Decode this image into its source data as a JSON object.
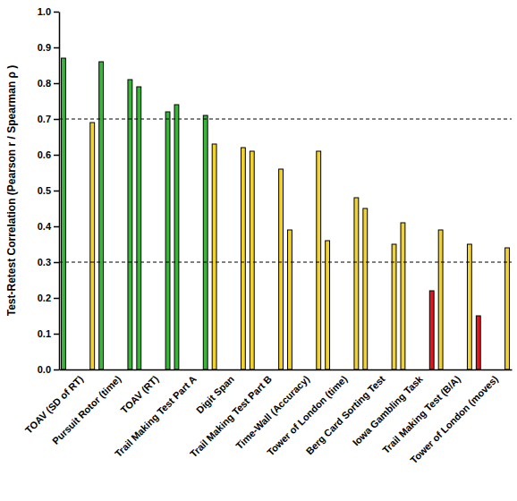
{
  "chart_data": {
    "type": "bar",
    "y_label": "Test-Retest Correlation (Pearson r / Spearman ρ )",
    "categories": [
      "TOAV (SD of RT)",
      "Pursuit Rotor (time)",
      "TOAV (RT)",
      "Trail Making Test Part A",
      "Digit Span",
      "Trail Making Test Part B",
      "Time-Wall (Accuracy)",
      "Tower of London (time)",
      "Berg Card Sorting Test",
      "Iowa Gambling Task",
      "Trail Making Test (B/A)",
      "Tower of London (moves)"
    ],
    "series": [
      {
        "values": [
          0.87,
          0.86,
          0.79,
          0.74,
          0.63,
          0.61,
          0.39,
          0.36,
          0.45,
          0.41,
          0.39,
          0.15
        ],
        "colors": [
          "#3cb43c",
          "#3cb43c",
          "#3cb43c",
          "#3cb43c",
          "#f2d22e",
          "#f2d22e",
          "#f2d22e",
          "#f2d22e",
          "#f2d22e",
          "#f2d22e",
          "#f2d22e",
          "#e8141c"
        ]
      },
      {
        "values": [
          0.69,
          0.81,
          0.72,
          0.71,
          0.62,
          0.56,
          0.61,
          0.48,
          0.35,
          0.22,
          0.35,
          0.34
        ],
        "colors": [
          "#f2d22e",
          "#3cb43c",
          "#3cb43c",
          "#3cb43c",
          "#f2d22e",
          "#f2d22e",
          "#f2d22e",
          "#f2d22e",
          "#f2d22e",
          "#e8141c",
          "#f2d22e",
          "#f2d22e"
        ]
      }
    ],
    "reference_lines": [
      0.3,
      0.7
    ],
    "ylim": [
      0,
      1
    ],
    "yticks": [
      {
        "value": 0,
        "label": "0.0"
      },
      0.1,
      0.2,
      0.3,
      0.4,
      0.5,
      0.6,
      0.7,
      0.8,
      0.9,
      {
        "value": 1,
        "label": "1.0"
      }
    ],
    "grid": false
  }
}
